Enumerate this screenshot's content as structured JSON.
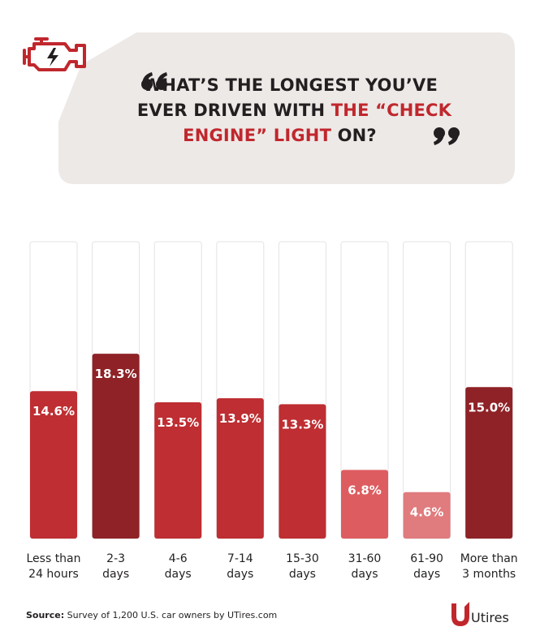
{
  "title": {
    "line1": "WHAT’S THE LONGEST YOU’VE",
    "line2_a": "EVER DRIVEN WITH ",
    "line2_b": "THE “CHECK",
    "line3_a": "ENGINE” LIGHT",
    "line3_b": " ON?"
  },
  "colors": {
    "accent": "#c0272d",
    "dark_bar": "#8e2227",
    "mid_bar": "#be2e32",
    "light_bar": "#dd5c60",
    "lighter_bar": "#e07b7e",
    "bubble": "#ede9e7",
    "track": "#e3e3e3"
  },
  "chart_data": {
    "type": "bar",
    "categories": [
      "Less than 24 hours",
      "2-3 days",
      "4-6 days",
      "7-14 days",
      "15-30 days",
      "31-60 days",
      "61-90 days",
      "More than 3 months"
    ],
    "category_lines": [
      [
        "Less than",
        "24 hours"
      ],
      [
        "2-3",
        "days"
      ],
      [
        "4-6",
        "days"
      ],
      [
        "7-14",
        "days"
      ],
      [
        "15-30",
        "days"
      ],
      [
        "31-60",
        "days"
      ],
      [
        "61-90",
        "days"
      ],
      [
        "More than",
        "3 months"
      ]
    ],
    "values": [
      14.6,
      18.3,
      13.5,
      13.9,
      13.3,
      6.8,
      4.6,
      15.0
    ],
    "value_labels": [
      "14.6%",
      "18.3%",
      "13.5%",
      "13.9%",
      "13.3%",
      "6.8%",
      "4.6%",
      "15.0%"
    ],
    "bar_colors": [
      "#be2e32",
      "#8e2227",
      "#be2e32",
      "#be2e32",
      "#be2e32",
      "#dd5c60",
      "#e07b7e",
      "#8e2227"
    ],
    "ylim": [
      0,
      29.4
    ],
    "grid": false
  },
  "source": {
    "label": "Source:",
    "text": " Survey of 1,200 U.S. car owners by UTires.com"
  },
  "brand": {
    "name": "Utires"
  },
  "icons": {
    "engine": "check-engine-icon",
    "quote_open": "quote-open-icon",
    "quote_close": "quote-close-icon",
    "logo": "utires-logo-icon"
  }
}
